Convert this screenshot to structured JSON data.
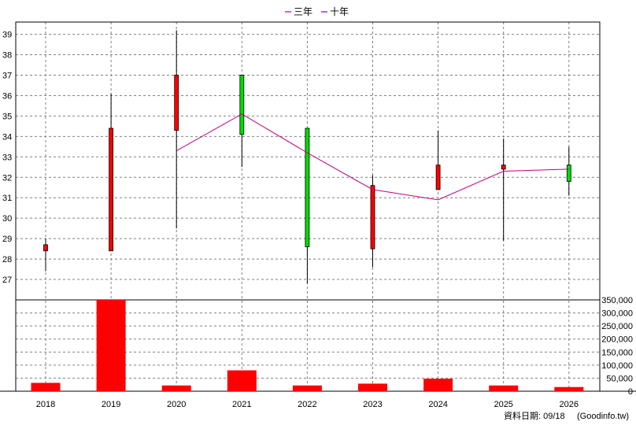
{
  "legend": {
    "items": [
      {
        "label": "三年",
        "color": "#c0007f"
      },
      {
        "label": "十年",
        "color": "#7f00c0"
      }
    ]
  },
  "footer": {
    "date_label": "資料日期: 09/18",
    "source_label": "(Goodinfo.tw)"
  },
  "colors": {
    "up": "#ff0000",
    "down": "#00dd00",
    "volume": "#ff0000",
    "ma_line": "#c0007f",
    "grid": "#808080"
  },
  "chart_data": [
    {
      "type": "candlestick",
      "categories": [
        "2018",
        "2019",
        "2020",
        "2021",
        "2022",
        "2023",
        "2024",
        "2025",
        "2026"
      ],
      "ylim": [
        26,
        39.6
      ],
      "yticks": [
        27,
        28,
        29,
        30,
        31,
        32,
        33,
        34,
        35,
        36,
        37,
        38,
        39
      ],
      "grid": true,
      "legend_position": "top-center",
      "candles": [
        {
          "x": "2018",
          "open": 28.4,
          "close": 28.7,
          "high": 29.0,
          "low": 27.4
        },
        {
          "x": "2019",
          "open": 28.4,
          "close": 34.4,
          "high": 36.1,
          "low": 28.4
        },
        {
          "x": "2020",
          "open": 34.3,
          "close": 37.0,
          "high": 39.2,
          "low": 29.5
        },
        {
          "x": "2021",
          "open": 37.0,
          "close": 34.1,
          "high": 37.0,
          "low": 32.5
        },
        {
          "x": "2022",
          "open": 34.4,
          "close": 28.6,
          "high": 34.4,
          "low": 26.8
        },
        {
          "x": "2023",
          "open": 28.5,
          "close": 31.6,
          "high": 32.1,
          "low": 27.6
        },
        {
          "x": "2024",
          "open": 31.4,
          "close": 32.6,
          "high": 34.3,
          "low": 31.4
        },
        {
          "x": "2025",
          "open": 32.4,
          "close": 32.6,
          "high": 33.9,
          "low": 28.9
        },
        {
          "x": "2026",
          "open": 32.6,
          "close": 31.8,
          "high": 33.5,
          "low": 31.1
        }
      ],
      "series": [
        {
          "name": "三年",
          "type": "line",
          "x": [
            "2020",
            "2021",
            "2022",
            "2023",
            "2024",
            "2025",
            "2026"
          ],
          "values": [
            33.3,
            35.1,
            33.2,
            31.4,
            30.9,
            32.3,
            32.4
          ]
        }
      ]
    },
    {
      "type": "bar",
      "categories": [
        "2018",
        "2019",
        "2020",
        "2021",
        "2022",
        "2023",
        "2024",
        "2025",
        "2026"
      ],
      "values": [
        32000,
        350000,
        22000,
        80000,
        22000,
        29000,
        48000,
        22000,
        16000
      ],
      "ylim": [
        0,
        350000
      ],
      "yticks": [
        0,
        50000,
        100000,
        150000,
        200000,
        250000,
        300000,
        350000
      ],
      "ytick_labels": [
        "0",
        "50,000",
        "100,000",
        "150,000",
        "200,000",
        "250,000",
        "300,000",
        "350,000"
      ],
      "grid": true
    }
  ]
}
